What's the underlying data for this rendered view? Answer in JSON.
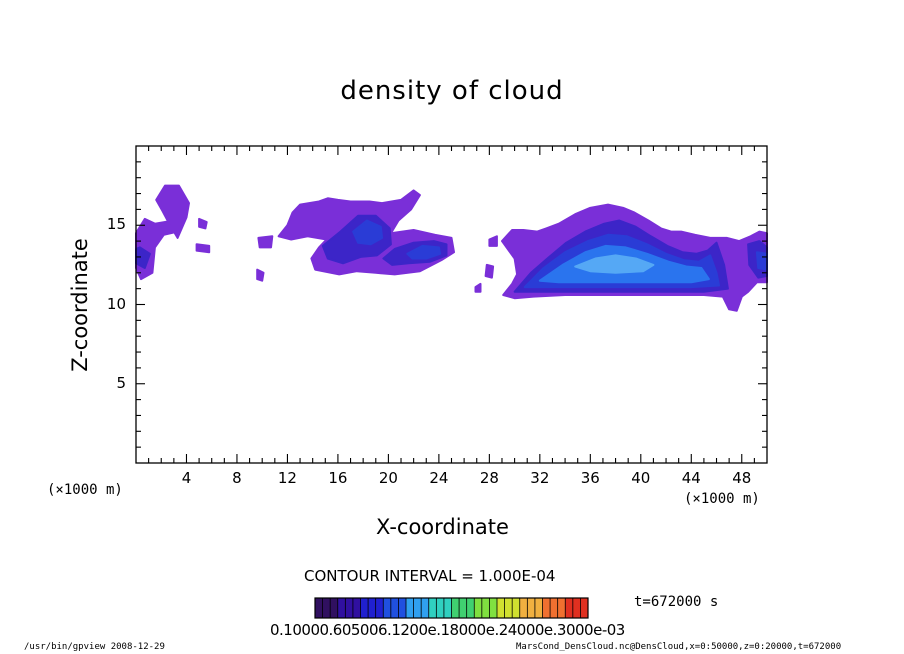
{
  "chart_data": {
    "type": "heatmap",
    "title": "density of cloud",
    "xlabel": "X-coordinate",
    "ylabel": "Z-coordinate",
    "x_unit_left": "(×1000 m)",
    "x_unit_right": "(×1000 m)",
    "xlim": [
      0,
      50
    ],
    "ylim": [
      0,
      20
    ],
    "x_ticks": [
      4,
      8,
      12,
      16,
      20,
      24,
      28,
      32,
      36,
      40,
      44,
      48
    ],
    "y_ticks": [
      5,
      10,
      15
    ],
    "contour_interval": "CONTOUR INTERVAL = 1.000E-04",
    "time_label": "t=672000 s",
    "colorbar_labels": "0.10000.605006.1200e.18000e.24000e.3000e-03",
    "colorbar_colors": [
      "#301060",
      "#3010a0",
      "#2020d0",
      "#2050e0",
      "#30a0f0",
      "#30d0c0",
      "#40d070",
      "#80e040",
      "#d0e030",
      "#f0b040",
      "#f07030",
      "#e03020"
    ],
    "cloud_colors": {
      "outer": "#7a2fd8",
      "mid": "#3c25c8",
      "inner": "#2a3cd6",
      "core": "#2a74ee",
      "peak": "#55a8f5"
    },
    "cloud_regions": [
      {
        "name": "left-edge",
        "level": "outer",
        "points": [
          [
            0,
            12.3
          ],
          [
            0.4,
            11.6
          ],
          [
            1.3,
            12.0
          ],
          [
            1.5,
            13.6
          ],
          [
            2.2,
            14.4
          ],
          [
            3.3,
            14.6
          ],
          [
            3.0,
            15.3
          ],
          [
            1.5,
            15.1
          ],
          [
            0.7,
            15.4
          ],
          [
            0,
            14.5
          ]
        ]
      },
      {
        "name": "left-edge-mid",
        "level": "mid",
        "points": [
          [
            0,
            12.6
          ],
          [
            0.7,
            12.3
          ],
          [
            1.1,
            13.2
          ],
          [
            0.3,
            13.6
          ],
          [
            0,
            13.5
          ]
        ]
      },
      {
        "name": "blob-x4",
        "level": "outer",
        "points": [
          [
            1.6,
            16.6
          ],
          [
            2.3,
            17.5
          ],
          [
            3.4,
            17.5
          ],
          [
            4.2,
            16.4
          ],
          [
            4.0,
            15.5
          ],
          [
            3.3,
            14.2
          ],
          [
            2.7,
            15.0
          ],
          [
            2.1,
            15.9
          ]
        ]
      },
      {
        "name": "speck-x5",
        "level": "outer",
        "points": [
          [
            5.0,
            15.4
          ],
          [
            5.6,
            15.2
          ],
          [
            5.5,
            14.8
          ],
          [
            5.0,
            14.9
          ]
        ]
      },
      {
        "name": "speck-x5b",
        "level": "outer",
        "points": [
          [
            4.8,
            13.8
          ],
          [
            5.8,
            13.7
          ],
          [
            5.8,
            13.3
          ],
          [
            4.8,
            13.4
          ]
        ]
      },
      {
        "name": "speck-x10",
        "level": "outer",
        "points": [
          [
            9.6,
            12.2
          ],
          [
            10.1,
            12.0
          ],
          [
            10.0,
            11.5
          ],
          [
            9.6,
            11.6
          ]
        ]
      },
      {
        "name": "speck-x10b",
        "level": "outer",
        "points": [
          [
            9.7,
            14.2
          ],
          [
            10.8,
            14.3
          ],
          [
            10.7,
            13.6
          ],
          [
            9.8,
            13.6
          ]
        ]
      },
      {
        "name": "main-left-cloud",
        "level": "outer",
        "points": [
          [
            11.3,
            14.3
          ],
          [
            12.0,
            15.0
          ],
          [
            12.4,
            15.8
          ],
          [
            13.0,
            16.3
          ],
          [
            14.5,
            16.5
          ],
          [
            15.2,
            16.7
          ],
          [
            16.0,
            16.6
          ],
          [
            17.0,
            16.5
          ],
          [
            18.5,
            16.5
          ],
          [
            19.5,
            16.4
          ],
          [
            21.0,
            16.6
          ],
          [
            22.0,
            17.2
          ],
          [
            22.5,
            16.9
          ],
          [
            21.8,
            16.0
          ],
          [
            20.8,
            15.3
          ],
          [
            20.2,
            14.5
          ],
          [
            22.0,
            14.7
          ],
          [
            23.7,
            14.4
          ],
          [
            25.0,
            14.2
          ],
          [
            25.2,
            13.3
          ],
          [
            24.2,
            12.8
          ],
          [
            22.5,
            12.1
          ],
          [
            20.5,
            11.9
          ],
          [
            19.0,
            12.0
          ],
          [
            17.5,
            12.1
          ],
          [
            16.1,
            11.9
          ],
          [
            14.2,
            12.2
          ],
          [
            13.9,
            12.9
          ],
          [
            14.5,
            13.6
          ],
          [
            15.1,
            14.1
          ],
          [
            13.6,
            14.3
          ],
          [
            12.3,
            14.1
          ]
        ]
      },
      {
        "name": "main-left-mid",
        "level": "mid",
        "points": [
          [
            14.8,
            13.7
          ],
          [
            16.2,
            14.6
          ],
          [
            17.6,
            15.6
          ],
          [
            19.0,
            15.6
          ],
          [
            20.1,
            14.8
          ],
          [
            20.2,
            13.8
          ],
          [
            19.1,
            13.1
          ],
          [
            17.8,
            13.0
          ],
          [
            16.4,
            12.6
          ],
          [
            15.2,
            12.9
          ]
        ]
      },
      {
        "name": "main-left-inner",
        "level": "inner",
        "points": [
          [
            17.2,
            14.6
          ],
          [
            18.3,
            15.3
          ],
          [
            19.4,
            14.9
          ],
          [
            19.5,
            14.2
          ],
          [
            18.6,
            13.8
          ],
          [
            17.6,
            13.9
          ]
        ]
      },
      {
        "name": "right-sub-mid",
        "level": "mid",
        "points": [
          [
            19.6,
            12.9
          ],
          [
            20.5,
            13.5
          ],
          [
            22.0,
            13.9
          ],
          [
            23.6,
            14.0
          ],
          [
            24.6,
            13.8
          ],
          [
            24.6,
            13.1
          ],
          [
            23.3,
            12.7
          ],
          [
            21.6,
            12.6
          ],
          [
            20.3,
            12.5
          ]
        ]
      },
      {
        "name": "right-sub-inner",
        "level": "inner",
        "points": [
          [
            21.5,
            13.2
          ],
          [
            22.7,
            13.7
          ],
          [
            24.0,
            13.6
          ],
          [
            24.1,
            13.2
          ],
          [
            23.0,
            12.9
          ],
          [
            21.9,
            12.9
          ]
        ]
      },
      {
        "name": "speck-x28",
        "level": "outer",
        "points": [
          [
            28.0,
            14.1
          ],
          [
            28.6,
            14.3
          ],
          [
            28.6,
            13.7
          ],
          [
            28.0,
            13.7
          ]
        ]
      },
      {
        "name": "speck-x28b",
        "level": "outer",
        "points": [
          [
            27.8,
            12.5
          ],
          [
            28.3,
            12.4
          ],
          [
            28.2,
            11.7
          ],
          [
            27.7,
            11.8
          ]
        ]
      },
      {
        "name": "speck-x27",
        "level": "outer",
        "points": [
          [
            26.9,
            11.1
          ],
          [
            27.3,
            11.3
          ],
          [
            27.3,
            10.8
          ],
          [
            26.9,
            10.8
          ]
        ]
      },
      {
        "name": "big-cloud",
        "level": "outer",
        "points": [
          [
            29.1,
            10.6
          ],
          [
            29.8,
            11.3
          ],
          [
            30.2,
            11.9
          ],
          [
            30.0,
            12.9
          ],
          [
            29.0,
            14.0
          ],
          [
            29.8,
            14.7
          ],
          [
            30.7,
            14.7
          ],
          [
            31.8,
            14.6
          ],
          [
            32.5,
            14.8
          ],
          [
            33.5,
            15.1
          ],
          [
            34.8,
            15.7
          ],
          [
            36.0,
            16.1
          ],
          [
            37.4,
            16.3
          ],
          [
            38.6,
            16.1
          ],
          [
            39.5,
            15.8
          ],
          [
            40.6,
            15.3
          ],
          [
            41.6,
            14.8
          ],
          [
            42.4,
            14.6
          ],
          [
            43.2,
            14.6
          ],
          [
            44.3,
            14.4
          ],
          [
            45.5,
            14.2
          ],
          [
            46.8,
            14.2
          ],
          [
            47.8,
            14.0
          ],
          [
            48.7,
            14.3
          ],
          [
            49.4,
            14.6
          ],
          [
            50,
            14.5
          ],
          [
            50,
            11.4
          ],
          [
            49.2,
            11.4
          ],
          [
            48.5,
            10.8
          ],
          [
            48.0,
            10.5
          ],
          [
            47.6,
            9.6
          ],
          [
            47.0,
            9.7
          ],
          [
            46.5,
            10.5
          ],
          [
            45.0,
            10.6
          ],
          [
            43.0,
            10.6
          ],
          [
            40.0,
            10.6
          ],
          [
            37.0,
            10.6
          ],
          [
            34.0,
            10.6
          ],
          [
            31.5,
            10.5
          ],
          [
            30.0,
            10.4
          ]
        ]
      },
      {
        "name": "big-cloud-mid",
        "level": "mid",
        "points": [
          [
            30.0,
            10.8
          ],
          [
            31.3,
            12.0
          ],
          [
            32.6,
            12.9
          ],
          [
            34.1,
            13.9
          ],
          [
            35.6,
            14.6
          ],
          [
            37.1,
            15.1
          ],
          [
            38.3,
            15.3
          ],
          [
            39.6,
            14.9
          ],
          [
            40.8,
            14.3
          ],
          [
            42.1,
            13.7
          ],
          [
            43.3,
            13.3
          ],
          [
            44.4,
            13.2
          ],
          [
            45.3,
            13.4
          ],
          [
            46.0,
            13.9
          ],
          [
            46.6,
            12.5
          ],
          [
            46.9,
            11.0
          ],
          [
            45.0,
            10.8
          ],
          [
            42.0,
            10.8
          ],
          [
            38.0,
            10.8
          ],
          [
            34.0,
            10.8
          ],
          [
            31.0,
            10.8
          ]
        ]
      },
      {
        "name": "big-cloud-inner",
        "level": "inner",
        "points": [
          [
            30.8,
            11.1
          ],
          [
            32.3,
            12.3
          ],
          [
            34.0,
            13.3
          ],
          [
            35.8,
            14.0
          ],
          [
            37.4,
            14.4
          ],
          [
            38.9,
            14.3
          ],
          [
            40.5,
            13.8
          ],
          [
            42.0,
            13.2
          ],
          [
            43.4,
            12.8
          ],
          [
            44.6,
            12.7
          ],
          [
            45.5,
            13.1
          ],
          [
            46.0,
            12.0
          ],
          [
            46.2,
            11.2
          ],
          [
            44.0,
            11.1
          ],
          [
            40.0,
            11.1
          ],
          [
            36.0,
            11.1
          ],
          [
            33.0,
            11.1
          ]
        ]
      },
      {
        "name": "big-cloud-core",
        "level": "core",
        "points": [
          [
            32.0,
            11.5
          ],
          [
            33.8,
            12.5
          ],
          [
            35.6,
            13.3
          ],
          [
            37.2,
            13.7
          ],
          [
            38.8,
            13.6
          ],
          [
            40.5,
            13.2
          ],
          [
            42.2,
            12.7
          ],
          [
            43.6,
            12.4
          ],
          [
            44.8,
            12.3
          ],
          [
            45.4,
            11.6
          ],
          [
            44.0,
            11.4
          ],
          [
            40.0,
            11.4
          ],
          [
            36.0,
            11.4
          ],
          [
            33.5,
            11.4
          ]
        ]
      },
      {
        "name": "big-cloud-peak",
        "level": "peak",
        "points": [
          [
            34.8,
            12.4
          ],
          [
            36.4,
            12.9
          ],
          [
            38.0,
            13.1
          ],
          [
            39.6,
            12.9
          ],
          [
            41.0,
            12.5
          ],
          [
            40.2,
            12.1
          ],
          [
            38.0,
            12.0
          ],
          [
            36.0,
            12.1
          ]
        ]
      },
      {
        "name": "right-edge-mid",
        "level": "mid",
        "points": [
          [
            48.5,
            13.8
          ],
          [
            49.4,
            14.0
          ],
          [
            50,
            13.6
          ],
          [
            50,
            11.8
          ],
          [
            49.3,
            11.7
          ],
          [
            48.6,
            12.5
          ]
        ]
      },
      {
        "name": "right-edge-inner",
        "level": "inner",
        "points": [
          [
            49.2,
            13.3
          ],
          [
            50,
            13.2
          ],
          [
            50,
            12.2
          ],
          [
            49.3,
            12.3
          ]
        ]
      }
    ]
  },
  "footer": {
    "left": "/usr/bin/gpview  2008-12-29",
    "right": "MarsCond_DensCloud.nc@DensCloud,x=0:50000,z=0:20000,t=672000"
  }
}
